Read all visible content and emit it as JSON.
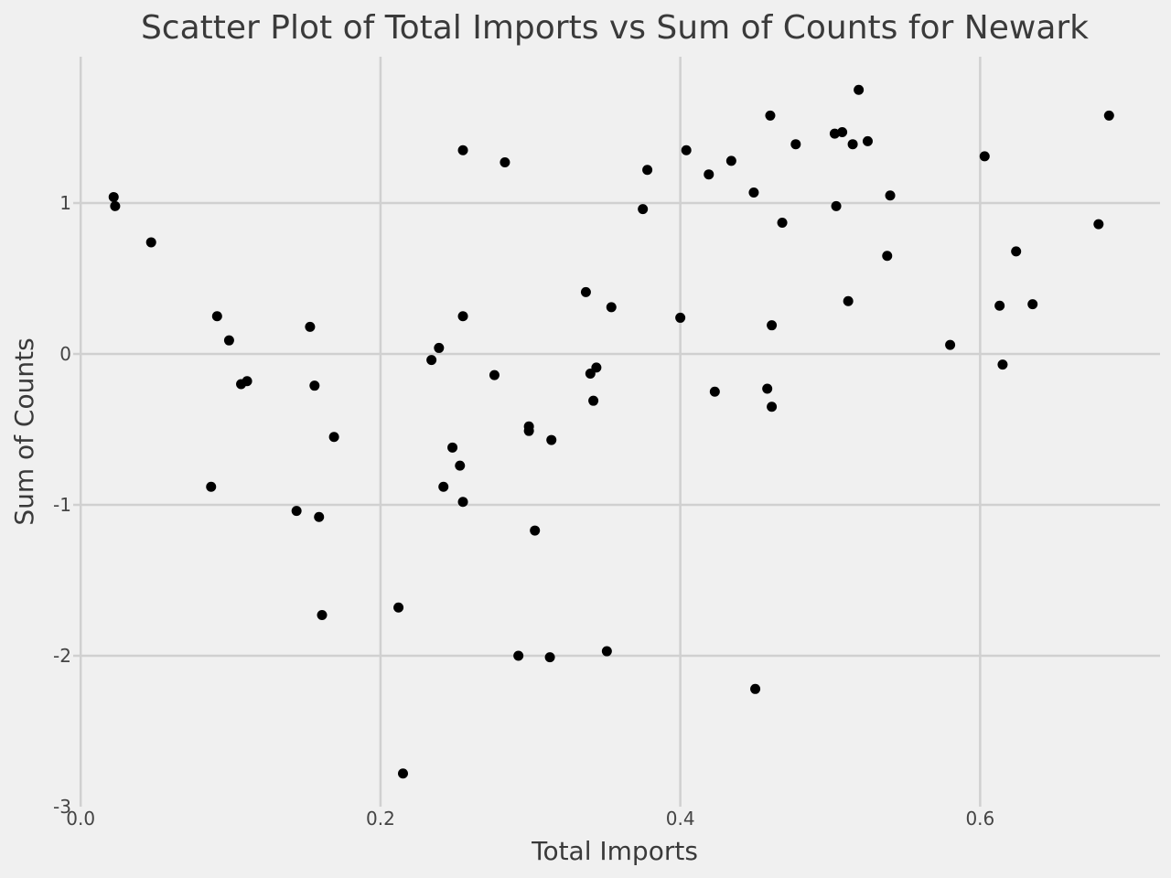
{
  "chart_data": {
    "type": "scatter",
    "title": "Scatter Plot of Total Imports vs Sum of Counts for Newark",
    "xlabel": "Total Imports",
    "ylabel": "Sum of Counts",
    "xlim": [
      -0.005,
      0.72
    ],
    "ylim": [
      -3.0,
      1.97
    ],
    "grid": true,
    "colors": {
      "background": "#f0f0f0",
      "grid": "#d0d0d0",
      "point": "#000000",
      "text": "#3a3a3a"
    },
    "x_ticks": [
      {
        "value": 0.0,
        "label": "0.0"
      },
      {
        "value": 0.2,
        "label": "0.2"
      },
      {
        "value": 0.4,
        "label": "0.4"
      },
      {
        "value": 0.6,
        "label": "0.6"
      }
    ],
    "y_ticks": [
      {
        "value": 1,
        "label": "1"
      },
      {
        "value": 0,
        "label": "0"
      },
      {
        "value": -1,
        "label": "-1"
      },
      {
        "value": -2,
        "label": "-2"
      },
      {
        "value": -3,
        "label": "-3"
      }
    ],
    "points": [
      {
        "x": 0.022,
        "y": 1.04
      },
      {
        "x": 0.023,
        "y": 0.98
      },
      {
        "x": 0.047,
        "y": 0.74
      },
      {
        "x": 0.087,
        "y": -0.88
      },
      {
        "x": 0.091,
        "y": 0.25
      },
      {
        "x": 0.099,
        "y": 0.09
      },
      {
        "x": 0.107,
        "y": -0.2
      },
      {
        "x": 0.111,
        "y": -0.18
      },
      {
        "x": 0.144,
        "y": -1.04
      },
      {
        "x": 0.153,
        "y": 0.18
      },
      {
        "x": 0.156,
        "y": -0.21
      },
      {
        "x": 0.159,
        "y": -1.08
      },
      {
        "x": 0.161,
        "y": -1.73
      },
      {
        "x": 0.169,
        "y": -0.55
      },
      {
        "x": 0.212,
        "y": -1.68
      },
      {
        "x": 0.215,
        "y": -2.78
      },
      {
        "x": 0.234,
        "y": -0.04
      },
      {
        "x": 0.239,
        "y": 0.04
      },
      {
        "x": 0.242,
        "y": -0.88
      },
      {
        "x": 0.248,
        "y": -0.62
      },
      {
        "x": 0.253,
        "y": -0.74
      },
      {
        "x": 0.255,
        "y": 1.35
      },
      {
        "x": 0.255,
        "y": 0.25
      },
      {
        "x": 0.255,
        "y": -0.98
      },
      {
        "x": 0.276,
        "y": -0.14
      },
      {
        "x": 0.283,
        "y": 1.27
      },
      {
        "x": 0.292,
        "y": -2.0
      },
      {
        "x": 0.299,
        "y": -0.48
      },
      {
        "x": 0.299,
        "y": -0.51
      },
      {
        "x": 0.303,
        "y": -1.17
      },
      {
        "x": 0.313,
        "y": -2.01
      },
      {
        "x": 0.314,
        "y": -0.57
      },
      {
        "x": 0.337,
        "y": 0.41
      },
      {
        "x": 0.34,
        "y": -0.13
      },
      {
        "x": 0.342,
        "y": -0.31
      },
      {
        "x": 0.344,
        "y": -0.09
      },
      {
        "x": 0.351,
        "y": -1.97
      },
      {
        "x": 0.354,
        "y": 0.31
      },
      {
        "x": 0.375,
        "y": 0.96
      },
      {
        "x": 0.378,
        "y": 1.22
      },
      {
        "x": 0.4,
        "y": 0.24
      },
      {
        "x": 0.404,
        "y": 1.35
      },
      {
        "x": 0.419,
        "y": 1.19
      },
      {
        "x": 0.423,
        "y": -0.25
      },
      {
        "x": 0.434,
        "y": 1.28
      },
      {
        "x": 0.449,
        "y": 1.07
      },
      {
        "x": 0.45,
        "y": -2.22
      },
      {
        "x": 0.458,
        "y": -0.23
      },
      {
        "x": 0.46,
        "y": 1.58
      },
      {
        "x": 0.461,
        "y": 0.19
      },
      {
        "x": 0.461,
        "y": -0.35
      },
      {
        "x": 0.468,
        "y": 0.87
      },
      {
        "x": 0.477,
        "y": 1.39
      },
      {
        "x": 0.503,
        "y": 1.46
      },
      {
        "x": 0.504,
        "y": 0.98
      },
      {
        "x": 0.508,
        "y": 1.47
      },
      {
        "x": 0.512,
        "y": 0.35
      },
      {
        "x": 0.515,
        "y": 1.39
      },
      {
        "x": 0.519,
        "y": 1.75
      },
      {
        "x": 0.525,
        "y": 1.41
      },
      {
        "x": 0.538,
        "y": 0.65
      },
      {
        "x": 0.54,
        "y": 1.05
      },
      {
        "x": 0.58,
        "y": 0.06
      },
      {
        "x": 0.603,
        "y": 1.31
      },
      {
        "x": 0.613,
        "y": 0.32
      },
      {
        "x": 0.615,
        "y": -0.07
      },
      {
        "x": 0.624,
        "y": 0.68
      },
      {
        "x": 0.635,
        "y": 0.33
      },
      {
        "x": 0.679,
        "y": 0.86
      },
      {
        "x": 0.686,
        "y": 1.58
      }
    ]
  }
}
